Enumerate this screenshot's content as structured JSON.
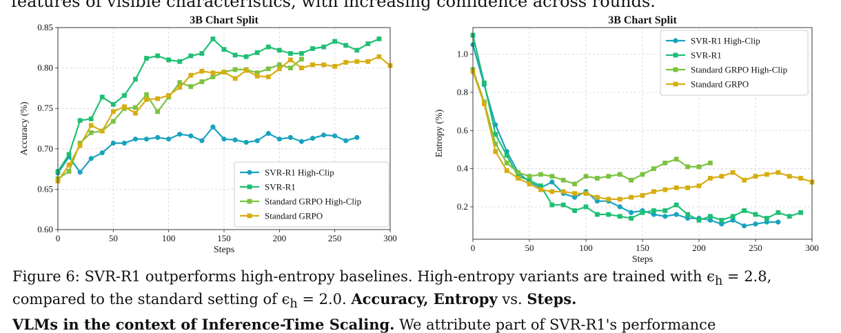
{
  "page": {
    "top_text": "features of visible characteristics, with increasing confidence across rounds.",
    "caption": {
      "label": "Figure 6:",
      "text": " SVR-R1 outperforms high-entropy baselines. High-entropy variants are trained with ϵ",
      "sub1": "h",
      "mid": " = 2.8, compared to the standard setting of ϵ",
      "sub2": "h",
      "tail": " = 2.0. ",
      "bold1": "Accuracy, Entropy",
      "vs": " vs. ",
      "bold2": "Steps."
    },
    "bottom_text": {
      "bold": "VLMs in the context of Inference-Time Scaling.",
      "text": " We attribute part of SVR-R1's performance"
    }
  },
  "chart_data": [
    {
      "type": "line",
      "title": "3B Chart Split",
      "xlabel": "Steps",
      "ylabel": "Accuracy (%)",
      "xlim": [
        0,
        300
      ],
      "ylim": [
        0.6,
        0.85
      ],
      "xticks": [
        0,
        50,
        100,
        150,
        200,
        250,
        300
      ],
      "yticks": [
        0.6,
        0.65,
        0.7,
        0.75,
        0.8,
        0.85
      ],
      "ytick_labels": [
        "0.60",
        "0.65",
        "0.70",
        "0.75",
        "0.80",
        "0.85"
      ],
      "grid": true,
      "legend": "lower-right",
      "series": [
        {
          "name": "SVR-R1 High-Clip",
          "color": "#17a3bd",
          "marker": "circle",
          "x": [
            0,
            10,
            20,
            30,
            40,
            50,
            60,
            70,
            80,
            90,
            100,
            110,
            120,
            130,
            140,
            150,
            160,
            170,
            180,
            190,
            200,
            210,
            220,
            230,
            240,
            250,
            260,
            270
          ],
          "y": [
            0.67,
            0.69,
            0.671,
            0.688,
            0.695,
            0.707,
            0.707,
            0.712,
            0.712,
            0.714,
            0.712,
            0.718,
            0.716,
            0.71,
            0.727,
            0.712,
            0.711,
            0.708,
            0.71,
            0.719,
            0.712,
            0.714,
            0.709,
            0.713,
            0.717,
            0.716,
            0.71,
            0.714
          ]
        },
        {
          "name": "SVR-R1",
          "color": "#1fbf73",
          "marker": "square",
          "x": [
            0,
            10,
            20,
            30,
            40,
            50,
            60,
            70,
            80,
            90,
            100,
            110,
            120,
            130,
            140,
            150,
            160,
            170,
            180,
            190,
            200,
            210,
            220,
            230,
            240,
            250,
            260,
            270,
            280,
            290
          ],
          "y": [
            0.672,
            0.693,
            0.735,
            0.737,
            0.764,
            0.755,
            0.766,
            0.786,
            0.812,
            0.815,
            0.81,
            0.808,
            0.815,
            0.818,
            0.836,
            0.823,
            0.816,
            0.814,
            0.819,
            0.826,
            0.822,
            0.818,
            0.818,
            0.824,
            0.826,
            0.833,
            0.828,
            0.822,
            0.83,
            0.836
          ]
        },
        {
          "name": "Standard GRPO High-Clip",
          "color": "#7cc240",
          "marker": "square",
          "x": [
            0,
            10,
            20,
            30,
            40,
            50,
            60,
            70,
            80,
            90,
            100,
            110,
            120,
            130,
            140,
            150,
            160,
            170,
            180,
            190,
            200,
            210,
            220
          ],
          "y": [
            0.663,
            0.672,
            0.707,
            0.72,
            0.722,
            0.734,
            0.75,
            0.751,
            0.767,
            0.746,
            0.764,
            0.782,
            0.777,
            0.783,
            0.789,
            0.795,
            0.798,
            0.798,
            0.794,
            0.799,
            0.804,
            0.8,
            0.811
          ]
        },
        {
          "name": "Standard GRPO",
          "color": "#d6ad12",
          "marker": "square",
          "x": [
            0,
            10,
            20,
            30,
            40,
            50,
            60,
            70,
            80,
            90,
            100,
            110,
            120,
            130,
            140,
            150,
            160,
            170,
            180,
            190,
            200,
            210,
            220,
            230,
            240,
            250,
            260,
            270,
            280,
            290,
            300
          ],
          "y": [
            0.66,
            0.68,
            0.704,
            0.729,
            0.722,
            0.746,
            0.752,
            0.744,
            0.761,
            0.762,
            0.766,
            0.776,
            0.791,
            0.796,
            0.794,
            0.795,
            0.787,
            0.797,
            0.79,
            0.789,
            0.799,
            0.81,
            0.8,
            0.804,
            0.804,
            0.802,
            0.807,
            0.808,
            0.808,
            0.814,
            0.803
          ]
        }
      ]
    },
    {
      "type": "line",
      "title": "3B Chart Split",
      "xlabel": "Steps",
      "ylabel": "Entropy (%)",
      "xlim": [
        0,
        300
      ],
      "ylim": [
        0.03,
        1.14
      ],
      "xticks": [
        0,
        50,
        100,
        150,
        200,
        250,
        300
      ],
      "yticks": [
        0.2,
        0.4,
        0.6,
        0.8,
        1.0
      ],
      "ytick_labels": [
        "0.2",
        "0.4",
        "0.6",
        "0.8",
        "1.0"
      ],
      "grid": true,
      "legend": "top-right",
      "series": [
        {
          "name": "SVR-R1 High-Clip",
          "color": "#17a3bd",
          "marker": "circle",
          "x": [
            0,
            10,
            20,
            30,
            40,
            50,
            60,
            70,
            80,
            90,
            100,
            110,
            120,
            130,
            140,
            150,
            160,
            170,
            180,
            190,
            200,
            210,
            220,
            230,
            240,
            250,
            260,
            270
          ],
          "y": [
            1.05,
            0.84,
            0.63,
            0.49,
            0.38,
            0.33,
            0.3,
            0.33,
            0.27,
            0.25,
            0.28,
            0.23,
            0.23,
            0.2,
            0.17,
            0.18,
            0.16,
            0.15,
            0.16,
            0.14,
            0.14,
            0.13,
            0.11,
            0.13,
            0.1,
            0.11,
            0.12,
            0.12
          ]
        },
        {
          "name": "SVR-R1",
          "color": "#1fbf73",
          "marker": "square",
          "x": [
            0,
            10,
            20,
            30,
            40,
            50,
            60,
            70,
            80,
            90,
            100,
            110,
            120,
            130,
            140,
            150,
            160,
            170,
            180,
            190,
            200,
            210,
            220,
            230,
            240,
            250,
            260,
            270,
            280,
            290
          ],
          "y": [
            1.1,
            0.85,
            0.58,
            0.47,
            0.36,
            0.34,
            0.31,
            0.21,
            0.21,
            0.18,
            0.2,
            0.16,
            0.16,
            0.15,
            0.14,
            0.17,
            0.18,
            0.18,
            0.21,
            0.16,
            0.13,
            0.15,
            0.13,
            0.15,
            0.18,
            0.16,
            0.14,
            0.17,
            0.15,
            0.17
          ]
        },
        {
          "name": "Standard GRPO High-Clip",
          "color": "#7cc240",
          "marker": "square",
          "x": [
            0,
            10,
            20,
            30,
            40,
            50,
            60,
            70,
            80,
            90,
            100,
            110,
            120,
            130,
            140,
            150,
            160,
            170,
            180,
            190,
            200,
            210
          ],
          "y": [
            0.92,
            0.75,
            0.53,
            0.43,
            0.38,
            0.36,
            0.37,
            0.36,
            0.34,
            0.32,
            0.36,
            0.35,
            0.36,
            0.37,
            0.34,
            0.37,
            0.4,
            0.43,
            0.45,
            0.41,
            0.41,
            0.43
          ]
        },
        {
          "name": "Standard GRPO",
          "color": "#d6ad12",
          "marker": "square",
          "x": [
            0,
            10,
            20,
            30,
            40,
            50,
            60,
            70,
            80,
            90,
            100,
            110,
            120,
            130,
            140,
            150,
            160,
            170,
            180,
            190,
            200,
            210,
            220,
            230,
            240,
            250,
            260,
            270,
            280,
            290,
            300
          ],
          "y": [
            0.91,
            0.74,
            0.49,
            0.39,
            0.35,
            0.32,
            0.29,
            0.28,
            0.28,
            0.27,
            0.27,
            0.25,
            0.24,
            0.24,
            0.25,
            0.26,
            0.28,
            0.29,
            0.3,
            0.3,
            0.31,
            0.35,
            0.36,
            0.38,
            0.34,
            0.36,
            0.37,
            0.38,
            0.36,
            0.35,
            0.33
          ]
        }
      ]
    }
  ]
}
